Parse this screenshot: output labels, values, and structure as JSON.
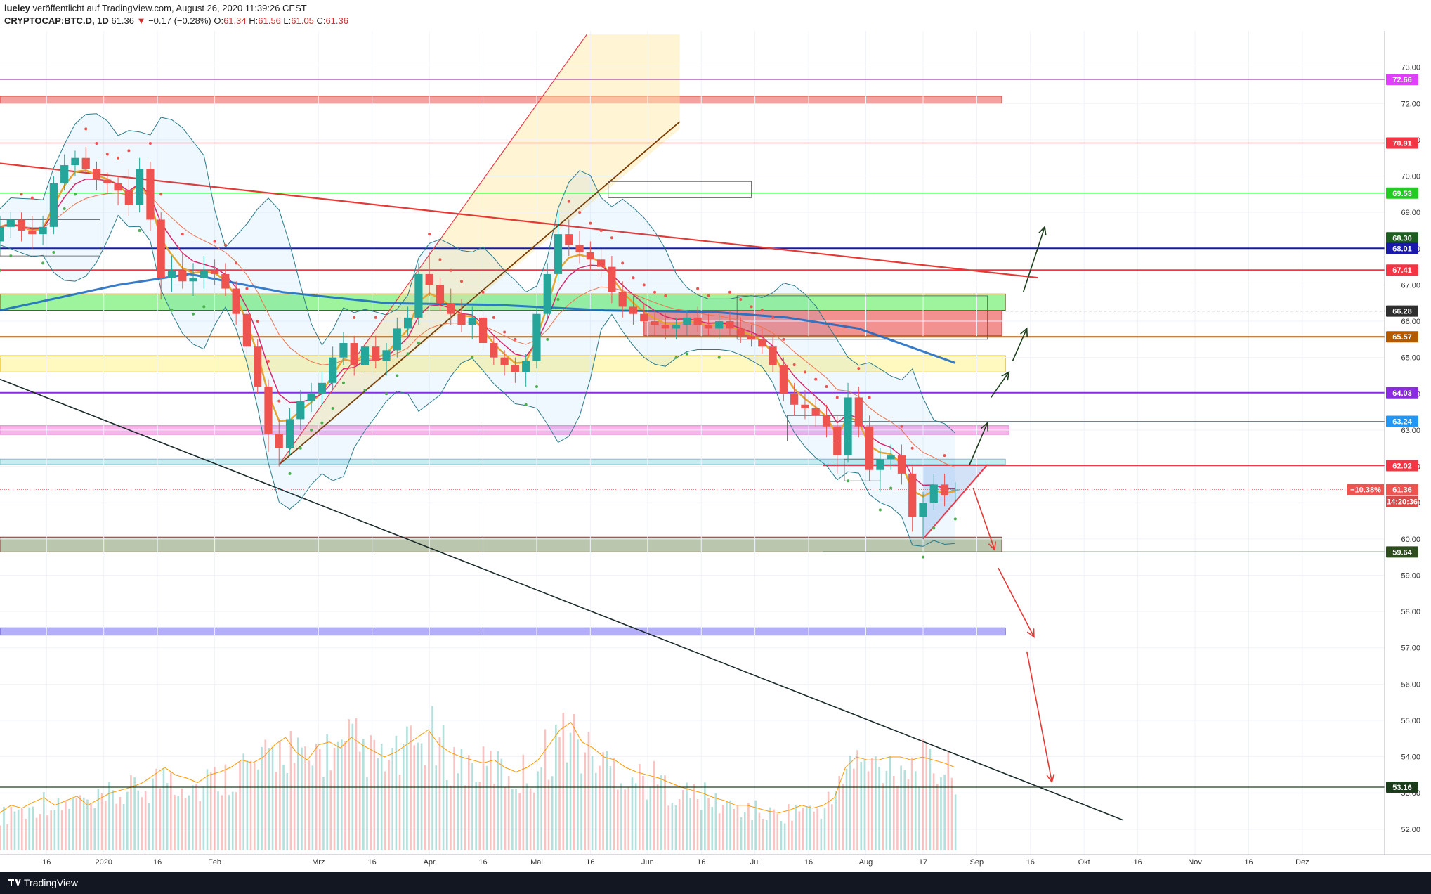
{
  "header": {
    "author": "lueley",
    "published": " veröffentlicht auf TradingView.com, August 26, 2020 11:39:26 CEST",
    "symbol": "CRYPTOCAP:BTC.D, 1D",
    "last": "61.36",
    "change_arrow": "▼",
    "change": "−0.17 (−0.28%)",
    "o_label": "O:",
    "o": "61.34",
    "h_label": "H:",
    "h": "61.56",
    "l_label": "L:",
    "l": "61.05",
    "c_label": "C:",
    "c": "61.36"
  },
  "footer": {
    "brand": "TradingView",
    "logo_icon": "tradingview-logo-icon"
  },
  "chart_data": {
    "type": "candlestick",
    "y_axis": {
      "min": 51.3,
      "max": 74.0,
      "ticks": [
        "52.00",
        "53.00",
        "54.00",
        "55.00",
        "56.00",
        "57.00",
        "58.00",
        "59.00",
        "60.00",
        "61.00",
        "62.00",
        "63.00",
        "64.00",
        "65.00",
        "66.00",
        "67.00",
        "68.00",
        "69.00",
        "70.00",
        "71.00",
        "72.00",
        "73.00"
      ],
      "tick_values": [
        52,
        53,
        54,
        55,
        56,
        57,
        58,
        59,
        60,
        61,
        62,
        63,
        64,
        65,
        66,
        67,
        68,
        69,
        70,
        71,
        72,
        73
      ]
    },
    "x_axis": {
      "start": "2019-12-03",
      "end": "2020-12-24",
      "tick_labels": [
        "16",
        "2020",
        "16",
        "Feb",
        "Mrz",
        "16",
        "Apr",
        "16",
        "Mai",
        "16",
        "Jun",
        "16",
        "Jul",
        "16",
        "Aug",
        "17",
        "Sep",
        "16",
        "Okt",
        "16",
        "Nov",
        "16",
        "Dez"
      ],
      "tick_dates": [
        "2019-12-16",
        "2020-01-01",
        "2020-01-16",
        "2020-02-01",
        "2020-03-01",
        "2020-03-16",
        "2020-04-01",
        "2020-04-16",
        "2020-05-01",
        "2020-05-16",
        "2020-06-01",
        "2020-06-16",
        "2020-07-01",
        "2020-07-16",
        "2020-08-01",
        "2020-08-17",
        "2020-09-01",
        "2020-09-16",
        "2020-10-01",
        "2020-10-16",
        "2020-11-01",
        "2020-11-16",
        "2020-12-01"
      ]
    },
    "price_levels": [
      {
        "label": "72.66",
        "value": 72.66,
        "color": "#e040fb"
      },
      {
        "label": "70.91",
        "value": 70.91,
        "color": "#f23645"
      },
      {
        "label": "69.53",
        "value": 69.53,
        "color": "#22cc22"
      },
      {
        "label": "68.30",
        "value": 68.3,
        "color": "#1b5e20"
      },
      {
        "label": "68.01",
        "value": 68.01,
        "color": "#1a1aaa"
      },
      {
        "label": "67.41",
        "value": 67.41,
        "color": "#f23645"
      },
      {
        "label": "66.28",
        "value": 66.28,
        "color": "#2e2e2e"
      },
      {
        "label": "65.57",
        "value": 65.57,
        "color": "#b35a00"
      },
      {
        "label": "64.03",
        "value": 64.03,
        "color": "#8a2be2"
      },
      {
        "label": "63.24",
        "value": 63.24,
        "color": "#2196f3"
      },
      {
        "label": "62.02",
        "value": 62.02,
        "color": "#f23645"
      },
      {
        "label": "59.64",
        "value": 59.64,
        "color": "#2e4d1f"
      },
      {
        "label": "53.16",
        "value": 53.16,
        "color": "#1b3d1b"
      }
    ],
    "current_price": {
      "label": "61.36",
      "value": 61.36,
      "change_label": "−10.38%",
      "countdown": "14:20:36",
      "color": "#ef5350"
    },
    "candles_ohlc": [
      [
        "2019-12-03",
        68.2,
        68.9,
        67.9,
        68.6
      ],
      [
        "2019-12-06",
        68.6,
        69.0,
        68.3,
        68.8
      ],
      [
        "2019-12-09",
        68.8,
        69.0,
        68.2,
        68.5
      ],
      [
        "2019-12-12",
        68.5,
        68.9,
        68.0,
        68.4
      ],
      [
        "2019-12-15",
        68.4,
        68.9,
        68.1,
        68.6
      ],
      [
        "2019-12-18",
        68.6,
        70.0,
        68.4,
        69.8
      ],
      [
        "2019-12-21",
        69.8,
        70.6,
        69.6,
        70.3
      ],
      [
        "2019-12-24",
        70.3,
        70.7,
        70.0,
        70.5
      ],
      [
        "2019-12-27",
        70.5,
        70.8,
        70.1,
        70.2
      ],
      [
        "2019-12-30",
        70.2,
        70.4,
        69.6,
        69.9
      ],
      [
        "2020-01-02",
        69.9,
        70.1,
        69.5,
        69.8
      ],
      [
        "2020-01-05",
        69.8,
        70.0,
        69.2,
        69.6
      ],
      [
        "2020-01-08",
        69.6,
        70.2,
        68.9,
        69.2
      ],
      [
        "2020-01-11",
        69.2,
        70.5,
        69.0,
        70.2
      ],
      [
        "2020-01-14",
        70.2,
        70.4,
        68.5,
        68.8
      ],
      [
        "2020-01-17",
        68.8,
        69.0,
        66.6,
        67.2
      ],
      [
        "2020-01-20",
        67.2,
        67.8,
        66.8,
        67.4
      ],
      [
        "2020-01-23",
        67.4,
        67.9,
        66.9,
        67.1
      ],
      [
        "2020-01-26",
        67.1,
        67.6,
        66.7,
        67.2
      ],
      [
        "2020-01-29",
        67.2,
        67.8,
        66.9,
        67.4
      ],
      [
        "2020-02-01",
        67.4,
        67.7,
        67.0,
        67.3
      ],
      [
        "2020-02-04",
        67.3,
        67.6,
        66.7,
        66.9
      ],
      [
        "2020-02-07",
        66.9,
        67.1,
        65.9,
        66.2
      ],
      [
        "2020-02-10",
        66.2,
        66.4,
        65.1,
        65.3
      ],
      [
        "2020-02-13",
        65.3,
        65.5,
        64.0,
        64.2
      ],
      [
        "2020-02-16",
        64.2,
        64.4,
        62.4,
        62.9
      ],
      [
        "2020-02-19",
        62.9,
        63.3,
        62.0,
        62.5
      ],
      [
        "2020-02-22",
        62.5,
        63.6,
        62.3,
        63.3
      ],
      [
        "2020-02-25",
        63.3,
        64.1,
        63.0,
        63.8
      ],
      [
        "2020-02-28",
        63.8,
        64.3,
        63.5,
        64.0
      ],
      [
        "2020-03-02",
        64.0,
        64.6,
        63.7,
        64.3
      ],
      [
        "2020-03-05",
        64.3,
        65.3,
        64.1,
        65.0
      ],
      [
        "2020-03-08",
        65.0,
        65.7,
        64.8,
        65.4
      ],
      [
        "2020-03-11",
        65.4,
        65.6,
        64.5,
        64.8
      ],
      [
        "2020-03-14",
        64.8,
        65.5,
        64.6,
        65.3
      ],
      [
        "2020-03-17",
        65.3,
        65.6,
        64.7,
        64.9
      ],
      [
        "2020-03-20",
        64.9,
        65.4,
        64.5,
        65.2
      ],
      [
        "2020-03-23",
        65.2,
        66.1,
        65.0,
        65.8
      ],
      [
        "2020-03-26",
        65.8,
        66.4,
        65.6,
        66.1
      ],
      [
        "2020-03-29",
        66.1,
        67.6,
        65.9,
        67.3
      ],
      [
        "2020-04-01",
        67.3,
        67.9,
        66.7,
        67.0
      ],
      [
        "2020-04-04",
        67.0,
        67.2,
        66.3,
        66.5
      ],
      [
        "2020-04-07",
        66.5,
        66.9,
        65.9,
        66.2
      ],
      [
        "2020-04-10",
        66.2,
        66.6,
        65.7,
        65.9
      ],
      [
        "2020-04-13",
        65.9,
        66.4,
        65.5,
        66.1
      ],
      [
        "2020-04-16",
        66.1,
        66.3,
        65.2,
        65.4
      ],
      [
        "2020-04-19",
        65.4,
        65.6,
        64.8,
        65.0
      ],
      [
        "2020-04-22",
        65.0,
        65.2,
        64.5,
        64.8
      ],
      [
        "2020-04-25",
        64.8,
        65.0,
        64.3,
        64.6
      ],
      [
        "2020-04-28",
        64.6,
        65.1,
        64.2,
        64.9
      ],
      [
        "2020-05-01",
        64.9,
        66.4,
        64.7,
        66.2
      ],
      [
        "2020-05-04",
        66.2,
        67.6,
        66.0,
        67.3
      ],
      [
        "2020-05-07",
        67.3,
        69.0,
        67.1,
        68.4
      ],
      [
        "2020-05-10",
        68.4,
        68.8,
        67.8,
        68.1
      ],
      [
        "2020-05-13",
        68.1,
        68.5,
        67.6,
        67.9
      ],
      [
        "2020-05-16",
        67.9,
        68.2,
        67.4,
        67.7
      ],
      [
        "2020-05-19",
        67.7,
        68.0,
        67.2,
        67.5
      ],
      [
        "2020-05-22",
        67.5,
        67.8,
        66.5,
        66.8
      ],
      [
        "2020-05-25",
        66.8,
        67.1,
        66.1,
        66.4
      ],
      [
        "2020-05-28",
        66.4,
        66.7,
        65.9,
        66.2
      ],
      [
        "2020-05-31",
        66.2,
        66.5,
        65.7,
        66.0
      ],
      [
        "2020-06-03",
        66.0,
        66.3,
        65.6,
        65.9
      ],
      [
        "2020-06-06",
        65.9,
        66.2,
        65.5,
        65.8
      ],
      [
        "2020-06-09",
        65.8,
        66.1,
        65.5,
        65.9
      ],
      [
        "2020-06-12",
        65.9,
        66.3,
        65.6,
        66.1
      ],
      [
        "2020-06-15",
        66.1,
        66.4,
        65.7,
        65.9
      ],
      [
        "2020-06-18",
        65.9,
        66.2,
        65.6,
        65.8
      ],
      [
        "2020-06-21",
        65.8,
        66.2,
        65.5,
        66.0
      ],
      [
        "2020-06-24",
        66.0,
        66.3,
        65.6,
        65.8
      ],
      [
        "2020-06-27",
        65.8,
        66.1,
        65.4,
        65.6
      ],
      [
        "2020-06-30",
        65.6,
        65.9,
        65.3,
        65.5
      ],
      [
        "2020-07-03",
        65.5,
        65.8,
        65.1,
        65.3
      ],
      [
        "2020-07-06",
        65.3,
        65.6,
        64.6,
        64.8
      ],
      [
        "2020-07-09",
        64.8,
        65.0,
        63.8,
        64.0
      ],
      [
        "2020-07-12",
        64.0,
        64.3,
        63.4,
        63.7
      ],
      [
        "2020-07-15",
        63.7,
        64.1,
        63.3,
        63.6
      ],
      [
        "2020-07-18",
        63.6,
        63.9,
        63.1,
        63.4
      ],
      [
        "2020-07-21",
        63.4,
        63.7,
        62.8,
        63.1
      ],
      [
        "2020-07-24",
        63.1,
        63.4,
        61.8,
        62.3
      ],
      [
        "2020-07-27",
        62.3,
        64.3,
        62.1,
        63.9
      ],
      [
        "2020-07-30",
        63.9,
        64.2,
        62.8,
        63.1
      ],
      [
        "2020-08-02",
        63.1,
        63.4,
        61.6,
        61.9
      ],
      [
        "2020-08-05",
        61.9,
        62.5,
        61.3,
        62.2
      ],
      [
        "2020-08-08",
        62.2,
        62.6,
        61.9,
        62.3
      ],
      [
        "2020-08-11",
        62.3,
        62.6,
        61.5,
        61.8
      ],
      [
        "2020-08-14",
        61.8,
        62.0,
        60.2,
        60.6
      ],
      [
        "2020-08-17",
        60.6,
        61.3,
        60.0,
        61.0
      ],
      [
        "2020-08-20",
        61.0,
        61.8,
        60.8,
        61.5
      ],
      [
        "2020-08-23",
        61.5,
        61.8,
        60.9,
        61.2
      ],
      [
        "2020-08-26",
        61.34,
        61.56,
        61.05,
        61.36
      ]
    ],
    "volume_profile": [
      0.25,
      0.3,
      0.28,
      0.32,
      0.35,
      0.3,
      0.33,
      0.36,
      0.3,
      0.34,
      0.38,
      0.4,
      0.42,
      0.45,
      0.5,
      0.55,
      0.5,
      0.48,
      0.45,
      0.5,
      0.52,
      0.55,
      0.6,
      0.58,
      0.62,
      0.7,
      0.75,
      0.65,
      0.6,
      0.7,
      0.72,
      0.68,
      0.75,
      0.7,
      0.66,
      0.62,
      0.65,
      0.7,
      0.75,
      0.8,
      0.7,
      0.65,
      0.62,
      0.6,
      0.58,
      0.6,
      0.55,
      0.52,
      0.55,
      0.6,
      0.7,
      0.8,
      0.85,
      0.72,
      0.68,
      0.62,
      0.6,
      0.55,
      0.52,
      0.5,
      0.48,
      0.45,
      0.42,
      0.4,
      0.38,
      0.35,
      0.33,
      0.3,
      0.3,
      0.28,
      0.26,
      0.25,
      0.27,
      0.3,
      0.28,
      0.3,
      0.35,
      0.55,
      0.62,
      0.6,
      0.6,
      0.62,
      0.62,
      0.6,
      0.62,
      0.6,
      0.58,
      0.55
    ],
    "indicators": [
      "EMA",
      "SMA200",
      "Bollinger Bands",
      "Parabolic SAR",
      "Volume"
    ]
  }
}
